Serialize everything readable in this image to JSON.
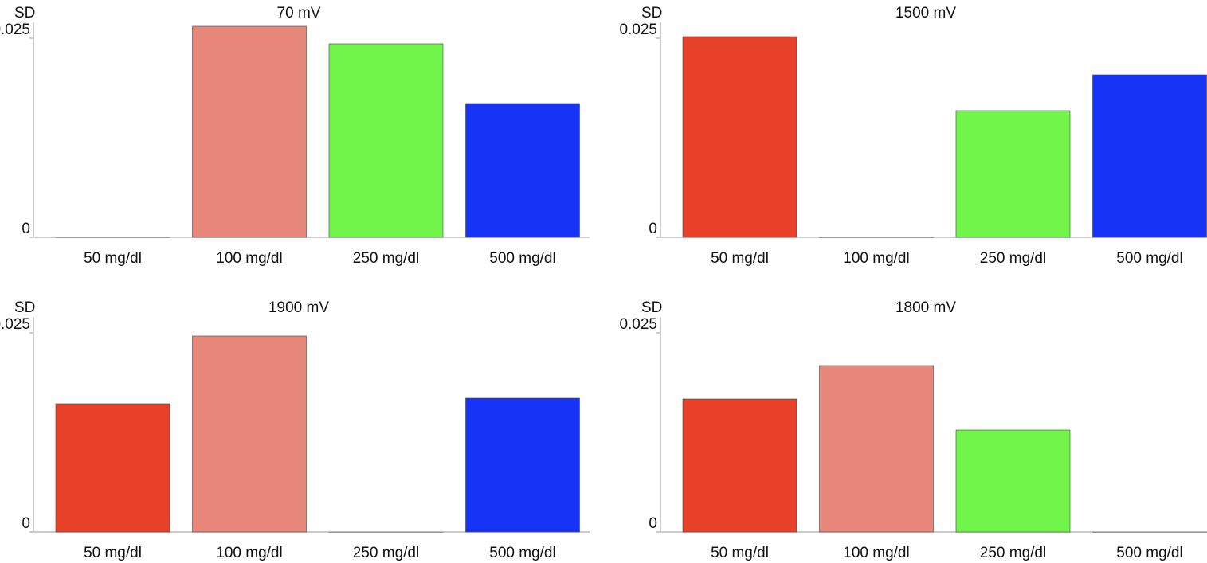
{
  "chart_data": [
    {
      "type": "bar",
      "title": "70 mV",
      "y_label": "SD",
      "categories": [
        "50 mg/dl",
        "100 mg/dl",
        "250 mg/dl",
        "500 mg/dl"
      ],
      "values": [
        0,
        0.0265,
        0.0243,
        0.0168
      ],
      "colors": [
        "#e8412a",
        "#e8887a",
        "#72f54a",
        "#1733f5"
      ],
      "ylim": [
        0,
        0.027
      ],
      "yticks": [
        0,
        0.025
      ]
    },
    {
      "type": "bar",
      "title": "1500 mV",
      "y_label": "SD",
      "categories": [
        "50 mg/dl",
        "100 mg/dl",
        "250 mg/dl",
        "500 mg/dl"
      ],
      "values": [
        0.0252,
        0,
        0.0159,
        0.0204
      ],
      "colors": [
        "#e8412a",
        "#e8887a",
        "#72f54a",
        "#1733f5"
      ],
      "ylim": [
        0,
        0.027
      ],
      "yticks": [
        0,
        0.025
      ]
    },
    {
      "type": "bar",
      "title": "1900 mV",
      "y_label": "SD",
      "categories": [
        "50 mg/dl",
        "100 mg/dl",
        "250 mg/dl",
        "500 mg/dl"
      ],
      "values": [
        0.0161,
        0.0246,
        0,
        0.0168
      ],
      "colors": [
        "#e8412a",
        "#e8887a",
        "#72f54a",
        "#1733f5"
      ],
      "ylim": [
        0,
        0.027
      ],
      "yticks": [
        0,
        0.025
      ]
    },
    {
      "type": "bar",
      "title": "1800 mV",
      "y_label": "SD",
      "categories": [
        "50 mg/dl",
        "100 mg/dl",
        "250 mg/dl",
        "500 mg/dl"
      ],
      "values": [
        0.0167,
        0.0209,
        0.0128,
        0
      ],
      "colors": [
        "#e8412a",
        "#e8887a",
        "#72f54a",
        "#1733f5"
      ],
      "ylim": [
        0,
        0.027
      ],
      "yticks": [
        0,
        0.025
      ]
    }
  ]
}
